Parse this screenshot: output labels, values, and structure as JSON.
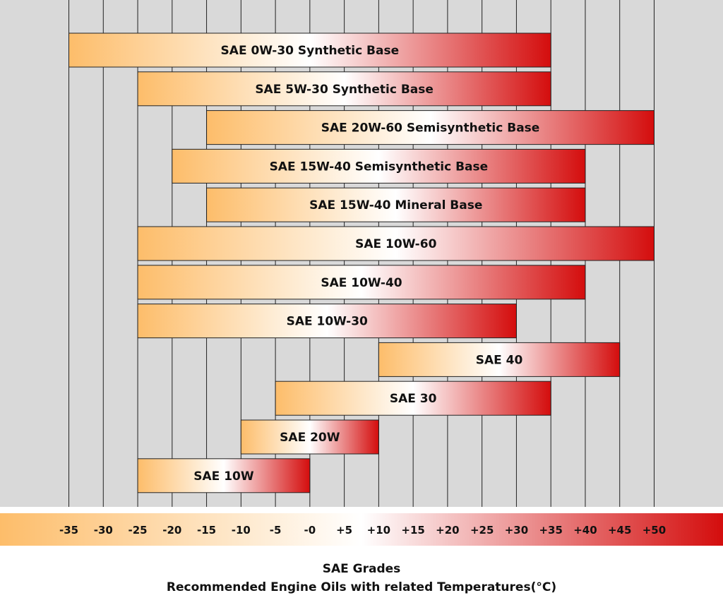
{
  "colors": {
    "panel_background": "#d9d9d9",
    "gridline": "#222222",
    "gradient_start": "#fdbd6a",
    "gradient_mid": "#ffffff",
    "gradient_end": "#d40d0d"
  },
  "chart_data": {
    "type": "bar",
    "orientation": "horizontal-range",
    "title": "SAE Grades",
    "subtitle": "Recommended Engine Oils with related Temperatures(°C)",
    "xlim": [
      -45,
      60
    ],
    "x_ticks": [
      -35,
      -30,
      -25,
      -20,
      -15,
      -10,
      -5,
      0,
      5,
      10,
      15,
      20,
      25,
      30,
      35,
      40,
      45,
      50
    ],
    "x_tick_labels": [
      "-35",
      "-30",
      "-25",
      "-20",
      "-15",
      "-10",
      "-5",
      "-0",
      "+5",
      "+10",
      "+15",
      "+20",
      "+25",
      "+30",
      "+35",
      "+40",
      "+45",
      "+50"
    ],
    "grid": true,
    "series": [
      {
        "label": "SAE 0W-30 Synthetic Base",
        "min": -35,
        "max": 35
      },
      {
        "label": "SAE 5W-30 Synthetic Base",
        "min": -25,
        "max": 35
      },
      {
        "label": "SAE 20W-60 Semisynthetic Base",
        "min": -15,
        "max": 50
      },
      {
        "label": "SAE 15W-40 Semisynthetic Base",
        "min": -20,
        "max": 40
      },
      {
        "label": "SAE 15W-40 Mineral Base",
        "min": -15,
        "max": 40
      },
      {
        "label": "SAE 10W-60",
        "min": -25,
        "max": 50
      },
      {
        "label": "SAE 10W-40",
        "min": -25,
        "max": 40
      },
      {
        "label": "SAE 10W-30",
        "min": -25,
        "max": 30
      },
      {
        "label": "SAE 40",
        "min": 10,
        "max": 45
      },
      {
        "label": "SAE 30",
        "min": -5,
        "max": 35
      },
      {
        "label": "SAE 20W",
        "min": -10,
        "max": 10
      },
      {
        "label": "SAE 10W",
        "min": -25,
        "max": 0
      }
    ]
  }
}
